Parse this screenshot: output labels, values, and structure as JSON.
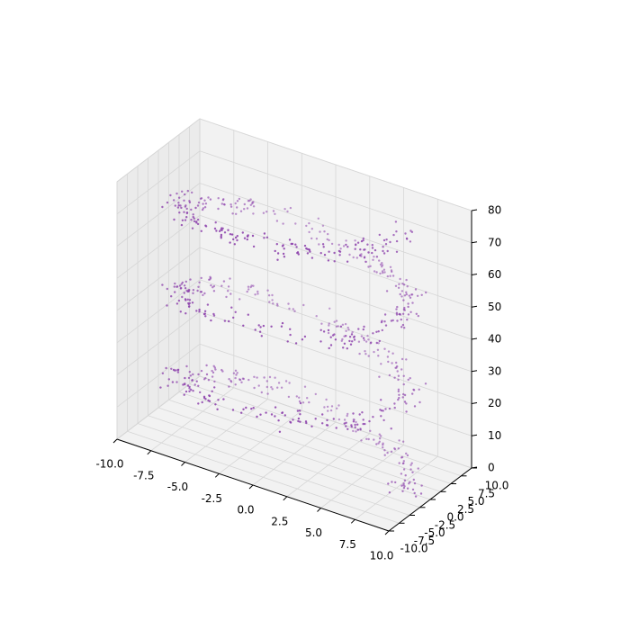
{
  "chart_data": {
    "type": "scatter",
    "projection": "3d",
    "title": "",
    "xlabel": "",
    "ylabel": "",
    "zlabel": "",
    "xlim": [
      -10,
      10
    ],
    "ylim": [
      -10,
      10
    ],
    "zlim": [
      0,
      80
    ],
    "x_ticks": [
      "-10.0",
      "-7.5",
      "-5.0",
      "-2.5",
      "0.0",
      "2.5",
      "5.0",
      "7.5",
      "10.0"
    ],
    "y_ticks": [
      "-10.0",
      "-7.5",
      "-5.0",
      "-2.5",
      "0.0",
      "2.5",
      "5.0",
      "7.5",
      "10.0"
    ],
    "z_ticks": [
      "0",
      "10",
      "20",
      "30",
      "40",
      "50",
      "60",
      "70",
      "80"
    ],
    "grid": true,
    "legend": "none",
    "series": [
      {
        "shape": "noisy helix",
        "radius_approx": 8,
        "turns_approx": 3,
        "z_range": [
          0,
          80
        ],
        "point_count_approx": 800
      }
    ],
    "colors": {
      "points": "#8e44ad",
      "pane": "#f2f2f2",
      "grid": "#d6d6d6",
      "axis": "#000000"
    }
  }
}
